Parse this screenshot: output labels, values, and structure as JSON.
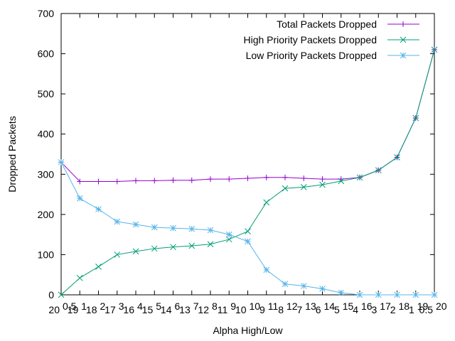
{
  "chart_data": {
    "type": "line",
    "xlabel": "Alpha High/Low",
    "ylabel": "Dropped Packets",
    "ylim": [
      0,
      700
    ],
    "yticks": [
      0,
      100,
      200,
      300,
      400,
      500,
      600,
      700
    ],
    "x": [
      0,
      1,
      2,
      3,
      4,
      5,
      6,
      7,
      8,
      9,
      10,
      11,
      12,
      13,
      14,
      15,
      16,
      17,
      18,
      19,
      20
    ],
    "xticks_lower": [
      "20",
      "19",
      "18",
      "17",
      "16",
      "15",
      "14",
      "13",
      "12",
      "11",
      "10",
      "9",
      "8",
      "7",
      "6",
      "5",
      "4",
      "3",
      "2",
      "1",
      "0.5"
    ],
    "xticks_upper": [
      "0.5",
      "1",
      "2",
      "3",
      "4",
      "5",
      "6",
      "7",
      "8",
      "9",
      "10",
      "11",
      "12",
      "13",
      "14",
      "15",
      "16",
      "17",
      "18",
      "19",
      "20"
    ],
    "grid": false,
    "legend_position": "top-right",
    "series": [
      {
        "name": "Total Packets Dropped",
        "color": "#9400d3",
        "marker": "plus",
        "values": [
          330,
          282,
          282,
          282,
          284,
          284,
          285,
          285,
          288,
          288,
          290,
          292,
          292,
          290,
          288,
          288,
          292,
          310,
          342,
          440,
          610
        ]
      },
      {
        "name": "High Priority Packets Dropped",
        "color": "#009e73",
        "marker": "cross",
        "values": [
          0,
          42,
          70,
          100,
          108,
          115,
          119,
          122,
          126,
          138,
          158,
          230,
          265,
          268,
          274,
          283,
          292,
          310,
          342,
          440,
          610
        ]
      },
      {
        "name": "Low Priority Packets Dropped",
        "color": "#56b4e9",
        "marker": "star",
        "values": [
          330,
          240,
          213,
          182,
          175,
          168,
          166,
          164,
          161,
          150,
          133,
          62,
          27,
          22,
          15,
          5,
          0,
          0,
          0,
          0,
          0
        ]
      }
    ]
  }
}
